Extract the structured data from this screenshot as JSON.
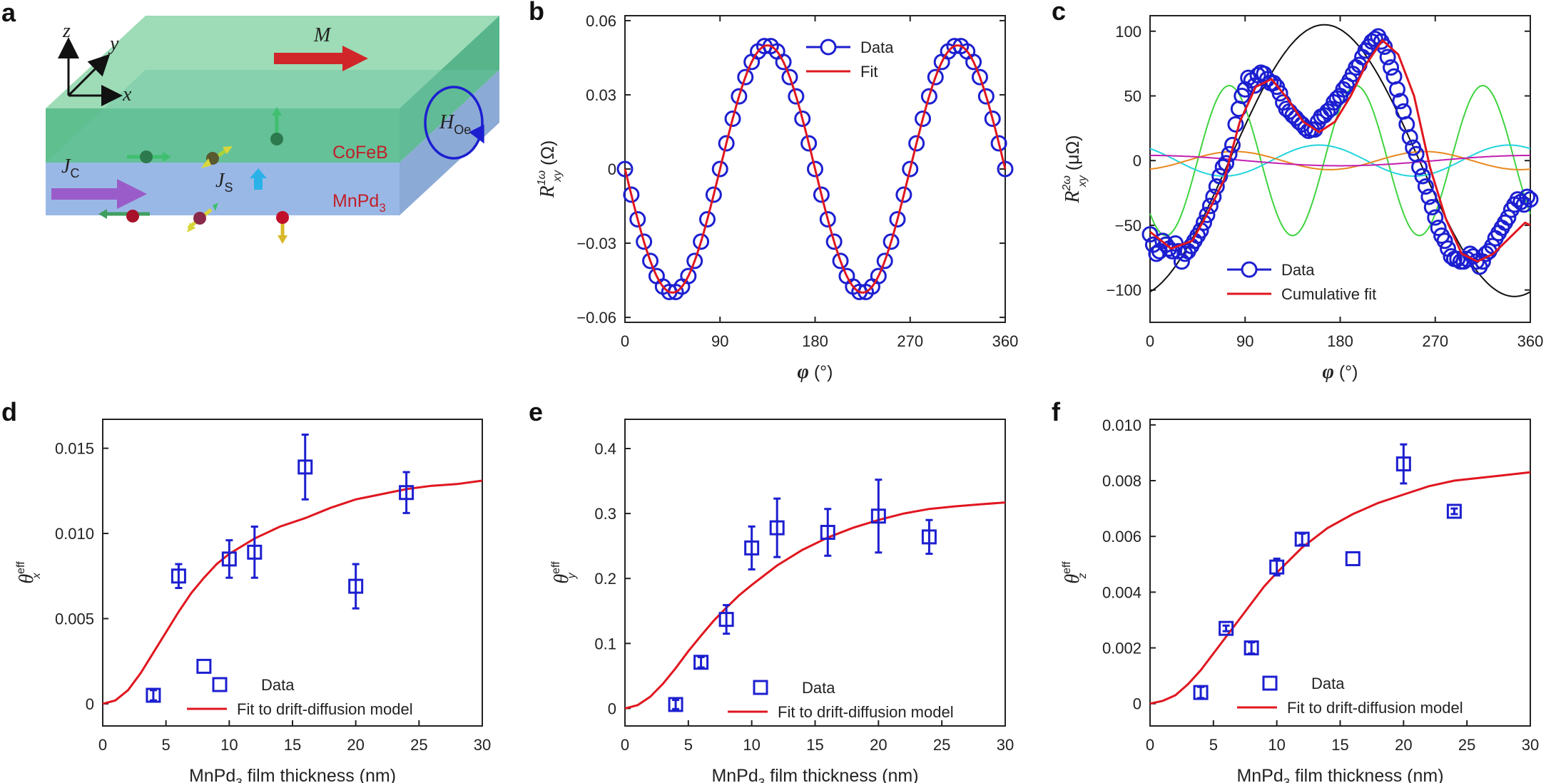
{
  "panel_labels": [
    "a",
    "b",
    "c",
    "d",
    "e",
    "f"
  ],
  "schematic": {
    "axis_z": "z",
    "axis_y": "y",
    "axis_x": "x",
    "magnetization": "M",
    "field": "H",
    "field_sub": "Oe",
    "charge_current": "J",
    "charge_current_sub": "C",
    "spin_current": "J",
    "spin_current_sub": "S",
    "top_layer": "CoFeB",
    "bottom_layer": "MnPd",
    "bottom_layer_sub": "3",
    "colors": {
      "top_layer": "#5fbf8f",
      "bottom_layer": "#9ab8e6",
      "label": "#c0202a"
    }
  },
  "chart_data": [
    {
      "id": "b",
      "type": "line",
      "xlabel": "φ (°)",
      "ylabel": "R",
      "ylabel_sup": "1ω",
      "ylabel_sub": "xy",
      "ylabel_unit": "(Ω)",
      "xlim": [
        0,
        360
      ],
      "ylim": [
        -0.062,
        0.062
      ],
      "xticks": [
        0,
        90,
        180,
        270,
        360
      ],
      "yticks": [
        -0.06,
        -0.03,
        0,
        0.03,
        0.06
      ],
      "ytick_labels": [
        "−0.06",
        "−0.03",
        "0",
        "0.03",
        "0.06"
      ],
      "fit_function": "-0.05*sin(2*φ)",
      "data_x": [
        0,
        6,
        12,
        18,
        24,
        30,
        36,
        42,
        48,
        54,
        60,
        66,
        72,
        78,
        84,
        90,
        96,
        102,
        108,
        114,
        120,
        126,
        132,
        138,
        144,
        150,
        156,
        162,
        168,
        174,
        180,
        186,
        192,
        198,
        204,
        210,
        216,
        222,
        228,
        234,
        240,
        246,
        252,
        258,
        264,
        270,
        276,
        282,
        288,
        294,
        300,
        306,
        312,
        318,
        324,
        330,
        336,
        342,
        348,
        354,
        360
      ],
      "legend": [
        "Data",
        "Fit"
      ],
      "colors": {
        "data": "#1c1fd0",
        "fit": "#e0161f"
      }
    },
    {
      "id": "c",
      "type": "line",
      "xlabel": "φ (°)",
      "ylabel": "R",
      "ylabel_sup": "2ω",
      "ylabel_sub": "xy",
      "ylabel_unit": "(μΩ)",
      "xlim": [
        0,
        360
      ],
      "ylim": [
        -125,
        112
      ],
      "xticks": [
        0,
        90,
        180,
        270,
        360
      ],
      "yticks": [
        -100,
        -50,
        0,
        50,
        100
      ],
      "ytick_labels": [
        "−100",
        "−50",
        "0",
        "50",
        "100"
      ],
      "components": [
        {
          "color": "#111111",
          "func": "105*cos(φ-165°)"
        },
        {
          "color": "#3fd43f",
          "func": "-58*cos(3(φ-15°))"
        },
        {
          "color": "#22d4dc",
          "func": "-12*cos(2(φ-70°))"
        },
        {
          "color": "#e8881e",
          "func": "-7*cos(2(φ+10°))"
        },
        {
          "color": "#c21eb0",
          "func": "4*cos(φ)"
        }
      ],
      "fit_points": [
        [
          0,
          -55
        ],
        [
          20,
          -68
        ],
        [
          40,
          -62
        ],
        [
          55,
          -40
        ],
        [
          70,
          -15
        ],
        [
          85,
          30
        ],
        [
          100,
          57
        ],
        [
          115,
          63
        ],
        [
          130,
          48
        ],
        [
          145,
          30
        ],
        [
          160,
          22
        ],
        [
          175,
          30
        ],
        [
          190,
          50
        ],
        [
          205,
          75
        ],
        [
          220,
          93
        ],
        [
          235,
          82
        ],
        [
          250,
          50
        ],
        [
          265,
          -5
        ],
        [
          280,
          -45
        ],
        [
          295,
          -72
        ],
        [
          310,
          -78
        ],
        [
          325,
          -72
        ],
        [
          340,
          -60
        ],
        [
          355,
          -48
        ],
        [
          360,
          -50
        ]
      ],
      "data_points": [
        [
          0,
          -57
        ],
        [
          3,
          -65
        ],
        [
          6,
          -72
        ],
        [
          9,
          -70
        ],
        [
          12,
          -62
        ],
        [
          15,
          -65
        ],
        [
          18,
          -68
        ],
        [
          21,
          -70
        ],
        [
          24,
          -64
        ],
        [
          27,
          -70
        ],
        [
          30,
          -78
        ],
        [
          33,
          -72
        ],
        [
          36,
          -70
        ],
        [
          39,
          -66
        ],
        [
          42,
          -62
        ],
        [
          45,
          -58
        ],
        [
          48,
          -54
        ],
        [
          51,
          -48
        ],
        [
          54,
          -42
        ],
        [
          57,
          -35
        ],
        [
          60,
          -28
        ],
        [
          63,
          -20
        ],
        [
          66,
          -12
        ],
        [
          69,
          -5
        ],
        [
          72,
          -2
        ],
        [
          75,
          5
        ],
        [
          78,
          12
        ],
        [
          81,
          28
        ],
        [
          84,
          40
        ],
        [
          87,
          50
        ],
        [
          90,
          55
        ],
        [
          93,
          64
        ],
        [
          96,
          62
        ],
        [
          99,
          58
        ],
        [
          102,
          66
        ],
        [
          105,
          68
        ],
        [
          108,
          67
        ],
        [
          111,
          63
        ],
        [
          114,
          60
        ],
        [
          117,
          60
        ],
        [
          120,
          57
        ],
        [
          123,
          52
        ],
        [
          126,
          45
        ],
        [
          129,
          40
        ],
        [
          132,
          38
        ],
        [
          135,
          35
        ],
        [
          138,
          33
        ],
        [
          141,
          30
        ],
        [
          144,
          28
        ],
        [
          147,
          25
        ],
        [
          150,
          23
        ],
        [
          153,
          24
        ],
        [
          156,
          24
        ],
        [
          159,
          30
        ],
        [
          162,
          34
        ],
        [
          165,
          35
        ],
        [
          168,
          38
        ],
        [
          171,
          40
        ],
        [
          174,
          45
        ],
        [
          177,
          48
        ],
        [
          180,
          50
        ],
        [
          183,
          55
        ],
        [
          186,
          58
        ],
        [
          189,
          62
        ],
        [
          192,
          67
        ],
        [
          195,
          72
        ],
        [
          198,
          74
        ],
        [
          201,
          80
        ],
        [
          204,
          85
        ],
        [
          207,
          88
        ],
        [
          210,
          92
        ],
        [
          213,
          94
        ],
        [
          216,
          96
        ],
        [
          219,
          92
        ],
        [
          222,
          88
        ],
        [
          225,
          80
        ],
        [
          228,
          72
        ],
        [
          231,
          65
        ],
        [
          234,
          55
        ],
        [
          237,
          46
        ],
        [
          240,
          38
        ],
        [
          243,
          28
        ],
        [
          246,
          18
        ],
        [
          249,
          10
        ],
        [
          252,
          5
        ],
        [
          255,
          -5
        ],
        [
          258,
          -12
        ],
        [
          261,
          -20
        ],
        [
          264,
          -28
        ],
        [
          267,
          -36
        ],
        [
          270,
          -44
        ],
        [
          273,
          -52
        ],
        [
          276,
          -58
        ],
        [
          279,
          -62
        ],
        [
          282,
          -68
        ],
        [
          285,
          -74
        ],
        [
          288,
          -76
        ],
        [
          291,
          -76
        ],
        [
          294,
          -78
        ],
        [
          297,
          -78
        ],
        [
          300,
          -76
        ],
        [
          303,
          -72
        ],
        [
          306,
          -74
        ],
        [
          309,
          -78
        ],
        [
          312,
          -82
        ],
        [
          315,
          -78
        ],
        [
          318,
          -72
        ],
        [
          321,
          -70
        ],
        [
          324,
          -66
        ],
        [
          327,
          -60
        ],
        [
          330,
          -56
        ],
        [
          333,
          -52
        ],
        [
          336,
          -48
        ],
        [
          339,
          -44
        ],
        [
          342,
          -38
        ],
        [
          345,
          -34
        ],
        [
          348,
          -30
        ],
        [
          351,
          -32
        ],
        [
          354,
          -34
        ],
        [
          357,
          -28
        ],
        [
          360,
          -30
        ]
      ],
      "legend": [
        "Data",
        "Cumulative fit"
      ],
      "colors": {
        "data": "#1c1fd0",
        "fit": "#e0161f"
      }
    },
    {
      "id": "d",
      "type": "scatter",
      "xlabel": "MnPd",
      "xlabel_sub": "3",
      "xlabel_rest": " film thickness (nm)",
      "ylabel": "θ",
      "ylabel_sup": "eff",
      "ylabel_sub": "x",
      "xlim": [
        0,
        30
      ],
      "ylim": [
        -0.0013,
        0.0167
      ],
      "xticks": [
        0,
        5,
        10,
        15,
        20,
        25,
        30
      ],
      "yticks": [
        0,
        0.005,
        0.01,
        0.015
      ],
      "ytick_labels": [
        "0",
        "0.005",
        "0.010",
        "0.015"
      ],
      "points": [
        {
          "x": 4,
          "y": 0.0005,
          "err": 0.0003
        },
        {
          "x": 6,
          "y": 0.0075,
          "err": 0.0007
        },
        {
          "x": 8,
          "y": 0.0022,
          "err": 0
        },
        {
          "x": 10,
          "y": 0.0085,
          "err": 0.0011
        },
        {
          "x": 12,
          "y": 0.0089,
          "err": 0.0015
        },
        {
          "x": 16,
          "y": 0.0139,
          "err": 0.0019
        },
        {
          "x": 20,
          "y": 0.0069,
          "err": 0.0013
        },
        {
          "x": 24,
          "y": 0.0124,
          "err": 0.0012
        }
      ],
      "fit_x": [
        0,
        1,
        2,
        3,
        4,
        5,
        6,
        7,
        8,
        9,
        10,
        12,
        14,
        16,
        18,
        20,
        22,
        24,
        26,
        28,
        30
      ],
      "fit_y": [
        0,
        0.0002,
        0.0008,
        0.0018,
        0.003,
        0.0042,
        0.0054,
        0.0065,
        0.0074,
        0.0082,
        0.0088,
        0.0097,
        0.0104,
        0.0109,
        0.0115,
        0.012,
        0.0123,
        0.0126,
        0.0128,
        0.0129,
        0.0131
      ],
      "legend": [
        "Data",
        "Fit to drift-diffusion model"
      ],
      "colors": {
        "data": "#1c1fd0",
        "fit": "#e0161f"
      }
    },
    {
      "id": "e",
      "type": "scatter",
      "xlabel": "MnPd",
      "xlabel_sub": "3",
      "xlabel_rest": " film thickness (nm)",
      "ylabel": "θ",
      "ylabel_sup": "eff",
      "ylabel_sub": "y",
      "xlim": [
        0,
        30
      ],
      "ylim": [
        -0.027,
        0.445
      ],
      "xticks": [
        0,
        5,
        10,
        15,
        20,
        25,
        30
      ],
      "yticks": [
        0,
        0.1,
        0.2,
        0.3,
        0.4
      ],
      "ytick_labels": [
        "0",
        "0.1",
        "0.2",
        "0.3",
        "0.4"
      ],
      "points": [
        {
          "x": 4,
          "y": 0.006,
          "err": 0.007
        },
        {
          "x": 6,
          "y": 0.071,
          "err": 0.008
        },
        {
          "x": 8,
          "y": 0.137,
          "err": 0.022
        },
        {
          "x": 10,
          "y": 0.247,
          "err": 0.033
        },
        {
          "x": 12,
          "y": 0.278,
          "err": 0.045
        },
        {
          "x": 16,
          "y": 0.271,
          "err": 0.036
        },
        {
          "x": 20,
          "y": 0.296,
          "err": 0.056
        },
        {
          "x": 24,
          "y": 0.264,
          "err": 0.026
        }
      ],
      "fit_x": [
        0,
        1,
        2,
        3,
        4,
        5,
        6,
        7,
        8,
        9,
        10,
        12,
        14,
        16,
        18,
        20,
        22,
        24,
        26,
        28,
        30
      ],
      "fit_y": [
        0,
        0.005,
        0.018,
        0.038,
        0.062,
        0.088,
        0.112,
        0.135,
        0.155,
        0.174,
        0.19,
        0.22,
        0.244,
        0.263,
        0.278,
        0.29,
        0.3,
        0.307,
        0.311,
        0.314,
        0.317
      ],
      "legend": [
        "Data",
        "Fit to drift-diffusion model"
      ],
      "colors": {
        "data": "#1c1fd0",
        "fit": "#e0161f"
      }
    },
    {
      "id": "f",
      "type": "scatter",
      "xlabel": "MnPd",
      "xlabel_sub": "3",
      "xlabel_rest": " film thickness (nm)",
      "ylabel": "θ",
      "ylabel_sup": "eff",
      "ylabel_sub": "z",
      "xlim": [
        0,
        30
      ],
      "ylim": [
        -0.0008,
        0.0102
      ],
      "xticks": [
        0,
        5,
        10,
        15,
        20,
        25,
        30
      ],
      "yticks": [
        0,
        0.002,
        0.004,
        0.006,
        0.008,
        0.01
      ],
      "ytick_labels": [
        "0",
        "0.002",
        "0.004",
        "0.006",
        "0.008",
        "0.010"
      ],
      "points": [
        {
          "x": 4,
          "y": 0.0004,
          "err": 0.0002
        },
        {
          "x": 6,
          "y": 0.0027,
          "err": 0.0001
        },
        {
          "x": 8,
          "y": 0.002,
          "err": 0.0002
        },
        {
          "x": 10,
          "y": 0.0049,
          "err": 0.0003
        },
        {
          "x": 12,
          "y": 0.0059,
          "err": 0.0002
        },
        {
          "x": 16,
          "y": 0.0052,
          "err": 0
        },
        {
          "x": 20,
          "y": 0.0086,
          "err": 0.0007
        },
        {
          "x": 24,
          "y": 0.0069,
          "err": 0.0001
        }
      ],
      "fit_x": [
        0,
        1,
        2,
        3,
        4,
        5,
        6,
        7,
        8,
        9,
        10,
        12,
        14,
        16,
        18,
        20,
        22,
        24,
        26,
        28,
        30
      ],
      "fit_y": [
        0,
        0.0001,
        0.0003,
        0.0007,
        0.0012,
        0.0018,
        0.0024,
        0.003,
        0.0036,
        0.0042,
        0.0047,
        0.0056,
        0.0063,
        0.0068,
        0.0072,
        0.0075,
        0.0078,
        0.008,
        0.0081,
        0.0082,
        0.0083
      ],
      "legend": [
        "Data",
        "Fit to drift-diffusion model"
      ],
      "colors": {
        "data": "#1c1fd0",
        "fit": "#e0161f"
      }
    }
  ]
}
